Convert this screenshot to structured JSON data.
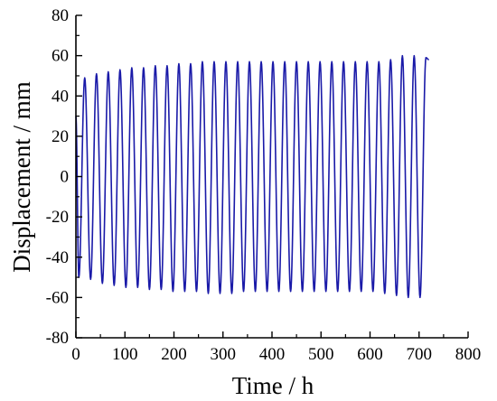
{
  "chart_data": {
    "type": "line",
    "title": "",
    "xlabel": "Time / h",
    "ylabel": "Displacement / mm",
    "xlim": [
      0,
      800
    ],
    "ylim": [
      -80,
      80
    ],
    "x_ticks": [
      0,
      100,
      200,
      300,
      400,
      500,
      600,
      700,
      800
    ],
    "y_ticks": [
      -80,
      -60,
      -40,
      -20,
      0,
      20,
      40,
      60,
      80
    ],
    "grid": false,
    "legend": "none",
    "series": [
      {
        "color": "#1a1aa8",
        "description_period_h": 24,
        "x_start": 0,
        "x_end": 720,
        "peaks": [
          {
            "x": 18,
            "y": 49
          },
          {
            "x": 42,
            "y": 51
          },
          {
            "x": 66,
            "y": 52
          },
          {
            "x": 90,
            "y": 53
          },
          {
            "x": 114,
            "y": 54
          },
          {
            "x": 138,
            "y": 54
          },
          {
            "x": 162,
            "y": 55
          },
          {
            "x": 186,
            "y": 55
          },
          {
            "x": 210,
            "y": 56
          },
          {
            "x": 234,
            "y": 56
          },
          {
            "x": 258,
            "y": 57
          },
          {
            "x": 282,
            "y": 57
          },
          {
            "x": 306,
            "y": 57
          },
          {
            "x": 330,
            "y": 57
          },
          {
            "x": 354,
            "y": 57
          },
          {
            "x": 378,
            "y": 57
          },
          {
            "x": 402,
            "y": 57
          },
          {
            "x": 426,
            "y": 57
          },
          {
            "x": 450,
            "y": 57
          },
          {
            "x": 474,
            "y": 57
          },
          {
            "x": 498,
            "y": 57
          },
          {
            "x": 522,
            "y": 57
          },
          {
            "x": 546,
            "y": 57
          },
          {
            "x": 570,
            "y": 57
          },
          {
            "x": 594,
            "y": 57
          },
          {
            "x": 618,
            "y": 57
          },
          {
            "x": 642,
            "y": 58
          },
          {
            "x": 666,
            "y": 60
          },
          {
            "x": 690,
            "y": 60
          },
          {
            "x": 714,
            "y": 59
          }
        ],
        "troughs": [
          {
            "x": 6,
            "y": -50
          },
          {
            "x": 30,
            "y": -51
          },
          {
            "x": 54,
            "y": -53
          },
          {
            "x": 78,
            "y": -54
          },
          {
            "x": 102,
            "y": -55
          },
          {
            "x": 126,
            "y": -55
          },
          {
            "x": 150,
            "y": -56
          },
          {
            "x": 174,
            "y": -56
          },
          {
            "x": 198,
            "y": -57
          },
          {
            "x": 222,
            "y": -57
          },
          {
            "x": 246,
            "y": -57
          },
          {
            "x": 270,
            "y": -58
          },
          {
            "x": 294,
            "y": -58
          },
          {
            "x": 318,
            "y": -58
          },
          {
            "x": 342,
            "y": -57
          },
          {
            "x": 366,
            "y": -57
          },
          {
            "x": 390,
            "y": -57
          },
          {
            "x": 414,
            "y": -57
          },
          {
            "x": 438,
            "y": -57
          },
          {
            "x": 462,
            "y": -57
          },
          {
            "x": 486,
            "y": -57
          },
          {
            "x": 510,
            "y": -57
          },
          {
            "x": 534,
            "y": -57
          },
          {
            "x": 558,
            "y": -57
          },
          {
            "x": 582,
            "y": -57
          },
          {
            "x": 606,
            "y": -57
          },
          {
            "x": 630,
            "y": -58
          },
          {
            "x": 654,
            "y": -59
          },
          {
            "x": 678,
            "y": -60
          },
          {
            "x": 702,
            "y": -60
          }
        ]
      }
    ]
  }
}
